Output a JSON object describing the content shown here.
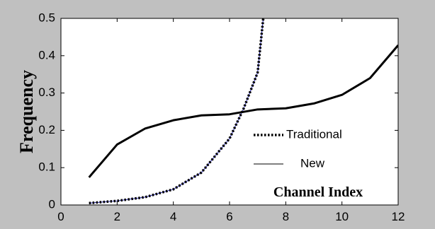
{
  "chart_data": {
    "type": "line",
    "xlabel": "Channel Index",
    "ylabel": "Frequency",
    "xlim": [
      0,
      12
    ],
    "ylim": [
      0,
      0.5
    ],
    "xticks": [
      0,
      2,
      4,
      6,
      8,
      10,
      12
    ],
    "yticks": [
      0,
      0.1,
      0.2,
      0.3,
      0.4,
      0.5
    ],
    "grid": false,
    "legend_position": "right",
    "series": [
      {
        "name": "Traditional",
        "style": "dotted",
        "color": "#000000",
        "dot_color": "#1a1aa8",
        "x": [
          1,
          2,
          3,
          4,
          5,
          6,
          6.5,
          7,
          7.2
        ],
        "y": [
          0.005,
          0.011,
          0.021,
          0.042,
          0.087,
          0.178,
          0.258,
          0.355,
          0.5
        ]
      },
      {
        "name": "New",
        "style": "solid",
        "color": "#000000",
        "x": [
          1,
          2,
          3,
          4,
          5,
          6,
          7,
          8,
          9,
          10,
          11,
          12
        ],
        "y": [
          0.074,
          0.162,
          0.205,
          0.227,
          0.24,
          0.243,
          0.256,
          0.259,
          0.272,
          0.295,
          0.34,
          0.428
        ]
      }
    ]
  }
}
